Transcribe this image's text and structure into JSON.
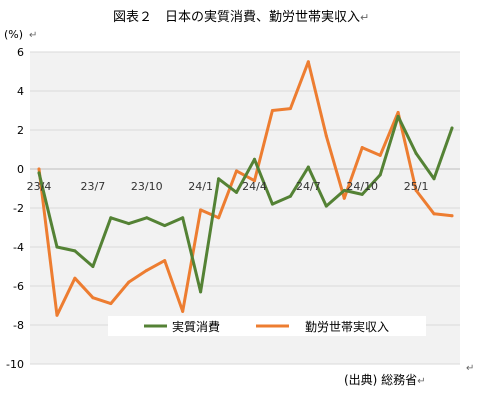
{
  "chart_data": {
    "type": "line",
    "title": "図表２　日本の実質消費、勤労世帯実収入",
    "title_mark": "↵",
    "ylabel": "(%)",
    "ylabel_mark": "↵",
    "source": "(出典) 総務省",
    "source_mark": "↵",
    "corner_mark": "↵",
    "ylim": [
      -10,
      6
    ],
    "yticks": [
      6,
      4,
      2,
      0,
      -2,
      -4,
      -6,
      -8,
      -10
    ],
    "x": [
      "23/4",
      "23/5",
      "23/6",
      "23/7",
      "23/8",
      "23/9",
      "23/10",
      "23/11",
      "23/12",
      "24/1",
      "24/2",
      "24/3",
      "24/4",
      "24/5",
      "24/6",
      "24/7",
      "24/8",
      "24/9",
      "24/10",
      "24/11",
      "24/12",
      "25/1",
      "25/2",
      "25/3"
    ],
    "xtick_labels": [
      "23/4",
      "23/7",
      "23/10",
      "24/1",
      "24/4",
      "24/7",
      "24/10",
      "25/1"
    ],
    "grid": true,
    "legend_position": "bottom",
    "series": [
      {
        "name": "実質消費",
        "color": "#548235",
        "values": [
          -0.2,
          -4.0,
          -4.2,
          -5.0,
          -2.5,
          -2.8,
          -2.5,
          -2.9,
          -2.5,
          -6.3,
          -0.5,
          -1.2,
          0.5,
          -1.8,
          -1.4,
          0.1,
          -1.9,
          -1.1,
          -1.3,
          -0.3,
          2.7,
          0.8,
          -0.5,
          2.1
        ]
      },
      {
        "name": "勤労世帯実収入",
        "color": "#ed7d31",
        "values": [
          0.0,
          -7.5,
          -5.6,
          -6.6,
          -6.9,
          -5.8,
          -5.2,
          -4.7,
          -7.3,
          -2.1,
          -2.5,
          -0.1,
          -0.6,
          3.0,
          3.1,
          5.5,
          1.7,
          -1.5,
          1.1,
          0.7,
          2.9,
          -1.1,
          -2.3,
          -2.4
        ]
      }
    ]
  }
}
